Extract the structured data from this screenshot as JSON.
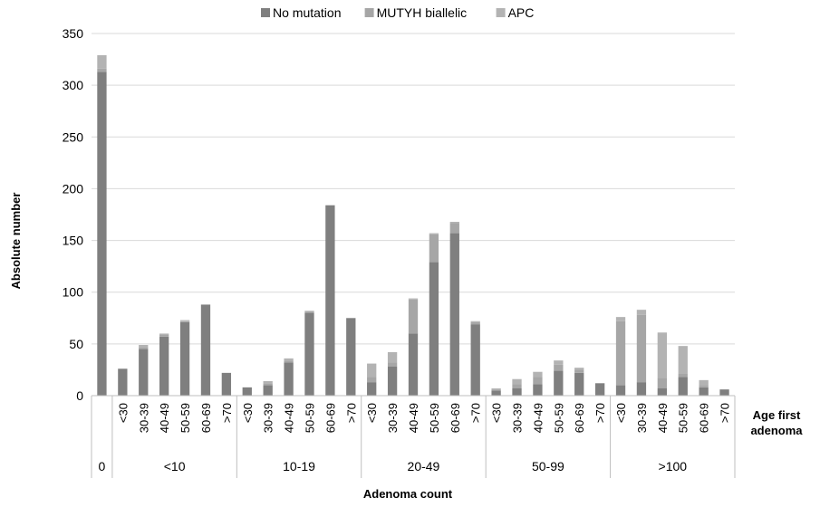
{
  "chart_data": {
    "type": "bar",
    "stacked": true,
    "legend": {
      "placement": "top-center",
      "entries": [
        {
          "label": "No mutation",
          "color": "#7f7f7f"
        },
        {
          "label": "MUTYH biallelic",
          "color": "#a6a6a6"
        },
        {
          "label": "APC",
          "color": "#b3b3b3"
        }
      ]
    },
    "ylabel": "Absolute number",
    "xlabel": "Adenoma count",
    "age_axis_label": "Age first adenoma",
    "ylim": [
      0,
      350
    ],
    "yticks": [
      0,
      50,
      100,
      150,
      200,
      250,
      300,
      350
    ],
    "grid": true,
    "groups": [
      {
        "label": "0",
        "categories": [
          ""
        ]
      },
      {
        "label": "<10",
        "categories": [
          "<30",
          "30-39",
          "40-49",
          "50-59",
          "60-69",
          ">70"
        ]
      },
      {
        "label": "10-19",
        "categories": [
          "<30",
          "30-39",
          "40-49",
          "50-59",
          "60-69",
          ">70"
        ]
      },
      {
        "label": "20-49",
        "categories": [
          "<30",
          "30-39",
          "40-49",
          "50-59",
          "60-69",
          ">70"
        ]
      },
      {
        "label": "50-99",
        "categories": [
          "<30",
          "30-39",
          "40-49",
          "50-59",
          "60-69",
          ">70"
        ]
      },
      {
        "label": ">100",
        "categories": [
          "<30",
          "30-39",
          "40-49",
          "50-59",
          "60-69",
          ">70"
        ]
      }
    ],
    "series": [
      {
        "name": "No mutation",
        "values": [
          313,
          26,
          45,
          57,
          71,
          88,
          22,
          8,
          10,
          32,
          80,
          184,
          75,
          13,
          28,
          60,
          129,
          157,
          69,
          5,
          7,
          11,
          24,
          22,
          12,
          10,
          13,
          7,
          18,
          8,
          6
        ]
      },
      {
        "name": "MUTYH biallelic",
        "values": [
          3,
          0,
          2,
          2,
          1,
          0,
          0,
          0,
          2,
          2,
          1,
          0,
          0,
          5,
          4,
          33,
          27,
          10,
          2,
          1,
          4,
          7,
          6,
          3,
          0,
          62,
          65,
          10,
          3,
          2,
          0
        ]
      },
      {
        "name": "APC",
        "values": [
          13,
          0,
          2,
          1,
          1,
          0,
          0,
          0,
          2,
          2,
          1,
          0,
          0,
          13,
          10,
          1,
          1,
          1,
          1,
          1,
          5,
          5,
          4,
          2,
          0,
          4,
          5,
          44,
          27,
          5,
          0
        ]
      }
    ]
  }
}
